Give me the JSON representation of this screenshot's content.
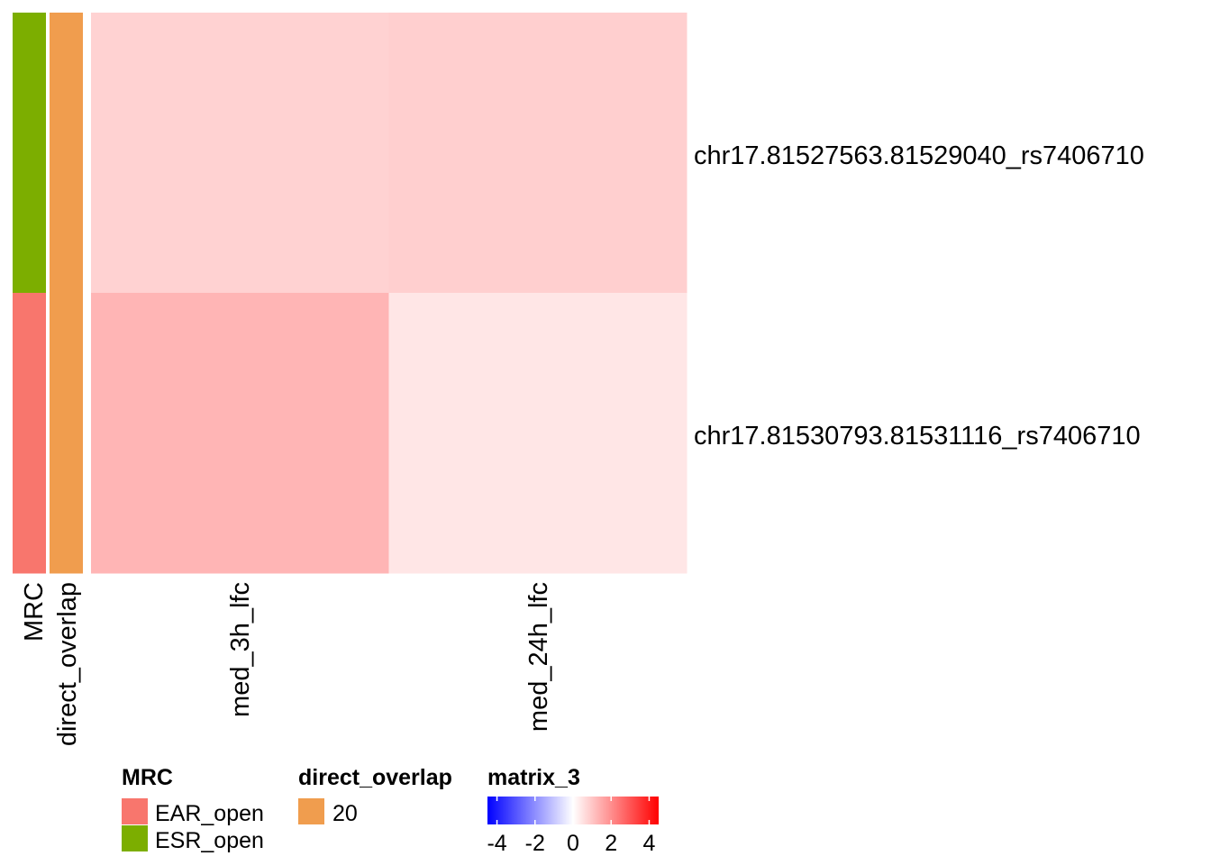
{
  "chart_data": {
    "type": "heatmap",
    "rows": [
      "chr17.81527563.81529040_rs7406710",
      "chr17.81530793.81531116_rs7406710"
    ],
    "columns": [
      "med_3h_lfc",
      "med_24h_lfc"
    ],
    "values": [
      [
        0.8,
        0.85
      ],
      [
        1.3,
        0.45
      ]
    ],
    "annotations": [
      {
        "name": "MRC",
        "values": [
          "ESR_open",
          "EAR_open"
        ]
      },
      {
        "name": "direct_overlap",
        "values": [
          "20",
          "20"
        ]
      }
    ],
    "legends": [
      {
        "title": "MRC",
        "entries": [
          {
            "label": "EAR_open",
            "color": "#F8766D"
          },
          {
            "label": "ESR_open",
            "color": "#7CAE00"
          }
        ]
      },
      {
        "title": "direct_overlap",
        "entries": [
          {
            "label": "20",
            "color": "#F09D4E"
          }
        ]
      },
      {
        "title": "matrix_3",
        "type": "colorbar",
        "range": [
          -4.5,
          4.5
        ],
        "ticks": [
          "-4",
          "-2",
          "0",
          "2",
          "4"
        ],
        "colors": {
          "low": "#0000FF",
          "mid": "#FFFFFF",
          "high": "#FF0000"
        }
      }
    ]
  }
}
